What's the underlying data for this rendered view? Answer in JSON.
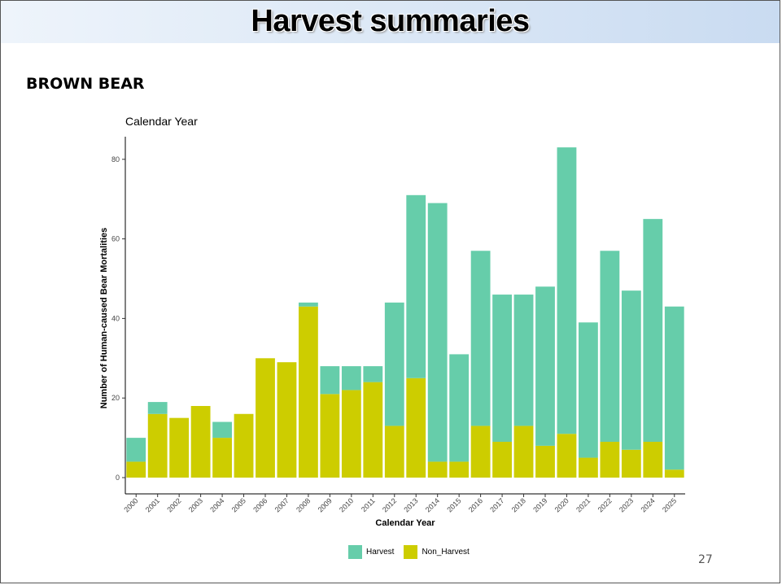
{
  "slide": {
    "title": "Harvest summaries",
    "section_label": "BROWN BEAR",
    "page_number": "27"
  },
  "colors": {
    "harvest": "#66cdaa",
    "non_harvest": "#cdcd00"
  },
  "chart_data": {
    "type": "bar",
    "stacked": true,
    "title": "Calendar Year",
    "xlabel": "Calendar Year",
    "ylabel": "Number of Human-caused Bear Mortalities",
    "ylim": [
      0,
      85
    ],
    "yticks": [
      0,
      20,
      40,
      60,
      80
    ],
    "legend_position": "bottom",
    "grid": false,
    "categories": [
      "2000",
      "2001",
      "2002",
      "2003",
      "2004",
      "2005",
      "2006",
      "2007",
      "2008",
      "2009",
      "2010",
      "2011",
      "2012",
      "2013",
      "2014",
      "2015",
      "2016",
      "2017",
      "2018",
      "2019",
      "2020",
      "2021",
      "2022",
      "2023",
      "2024",
      "2025"
    ],
    "series": [
      {
        "name": "Harvest",
        "values": [
          6,
          3,
          0,
          0,
          4,
          0,
          0,
          0,
          1,
          7,
          6,
          4,
          31,
          46,
          65,
          27,
          44,
          37,
          33,
          40,
          72,
          34,
          48,
          40,
          56,
          41
        ]
      },
      {
        "name": "Non_Harvest",
        "values": [
          4,
          16,
          15,
          18,
          10,
          16,
          30,
          29,
          43,
          21,
          22,
          24,
          13,
          25,
          4,
          4,
          13,
          9,
          13,
          8,
          11,
          5,
          9,
          7,
          9,
          2
        ]
      }
    ]
  }
}
